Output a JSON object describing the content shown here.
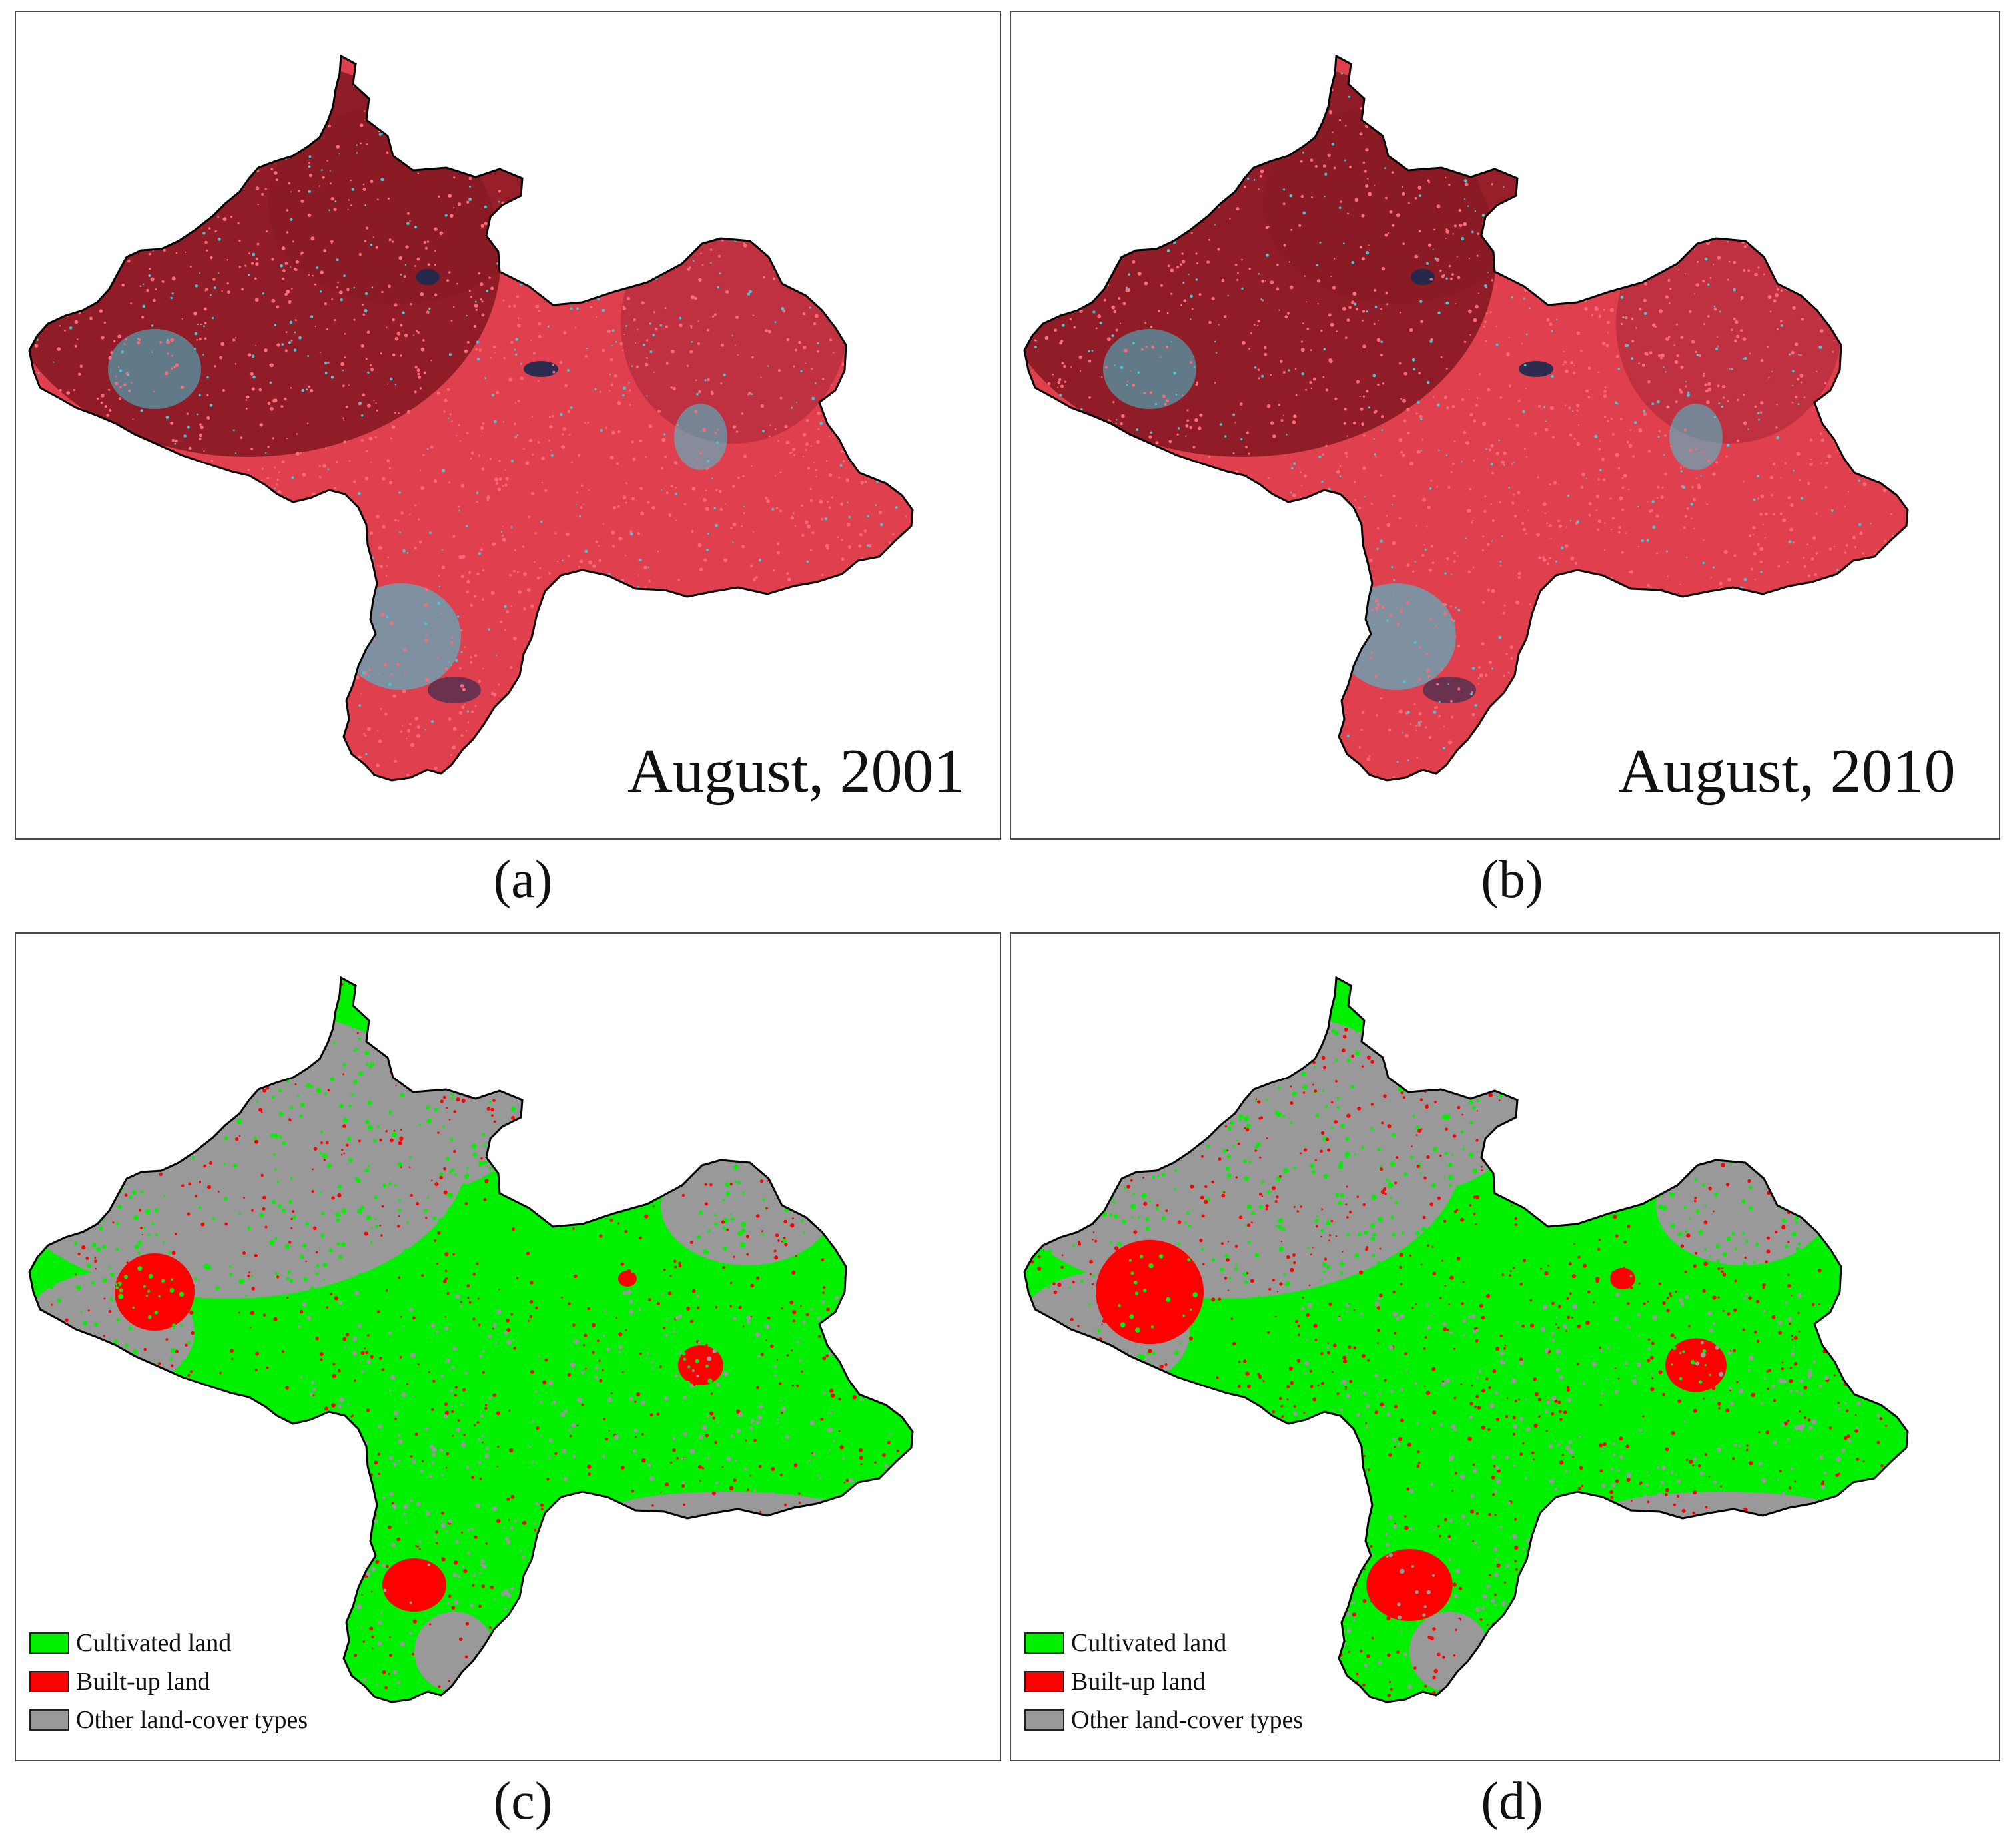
{
  "panels": [
    {
      "id": "a",
      "caption": "(a)",
      "date_label": "August, 2001",
      "type": "false-color-composite"
    },
    {
      "id": "b",
      "caption": "(b)",
      "date_label": "August, 2010",
      "type": "false-color-composite"
    },
    {
      "id": "c",
      "caption": "(c)",
      "type": "classification-map"
    },
    {
      "id": "d",
      "caption": "(d)",
      "type": "classification-map"
    }
  ],
  "legend": {
    "items": [
      {
        "label": "Cultivated land",
        "color": "#00f000"
      },
      {
        "label": "Built-up land",
        "color": "#ff0000"
      },
      {
        "label": "Other land-cover types",
        "color": "#999999"
      }
    ]
  },
  "colors": {
    "composite_forest": "#8a1a24",
    "composite_crop": "#e0404e",
    "composite_urban": "#3ec8d8",
    "composite_water": "#1a2a50",
    "outline": "#000000"
  }
}
